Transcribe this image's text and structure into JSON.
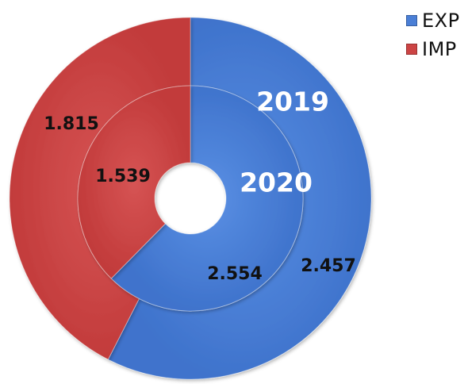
{
  "chart_data": {
    "type": "pie",
    "variant": "doughnut",
    "legend": {
      "position": "top-right",
      "items": [
        "EXP",
        "IMP"
      ]
    },
    "colors": {
      "EXP": "#4a7fd6",
      "IMP": "#cc4444"
    },
    "rings": [
      {
        "name": "2019",
        "position": "outer",
        "slices": [
          {
            "label": "EXP",
            "value": 2.457,
            "value_text": "2.457"
          },
          {
            "label": "IMP",
            "value": 1.815,
            "value_text": "1.815"
          }
        ]
      },
      {
        "name": "2020",
        "position": "inner",
        "slices": [
          {
            "label": "EXP",
            "value": 2.554,
            "value_text": "2.554"
          },
          {
            "label": "IMP",
            "value": 1.539,
            "value_text": "1.539"
          }
        ]
      }
    ]
  }
}
